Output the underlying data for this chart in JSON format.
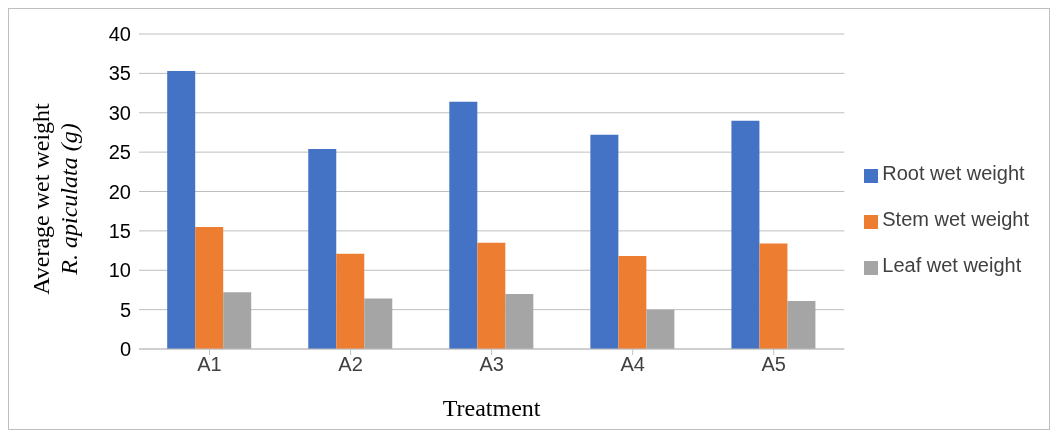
{
  "chart_data": {
    "type": "bar",
    "xlabel": "Treatment",
    "ylabel": "Average wet weight\nR. apiculata (g)",
    "categories": [
      "A1",
      "A2",
      "A3",
      "A4",
      "A5"
    ],
    "series": [
      {
        "name": "Root wet weight",
        "color": "#4472c4",
        "values": [
          35.3,
          25.4,
          31.4,
          27.2,
          29.0
        ]
      },
      {
        "name": "Stem wet weight",
        "color": "#ed7d31",
        "values": [
          15.5,
          12.1,
          13.5,
          11.8,
          13.4
        ]
      },
      {
        "name": "Leaf wet weight",
        "color": "#a5a5a5",
        "values": [
          7.2,
          6.4,
          7.0,
          5.0,
          6.1
        ]
      }
    ],
    "ylim": [
      0,
      40
    ],
    "yticks": [
      0,
      5,
      10,
      15,
      20,
      25,
      30,
      35,
      40
    ],
    "grid": "y",
    "legend": "right"
  }
}
